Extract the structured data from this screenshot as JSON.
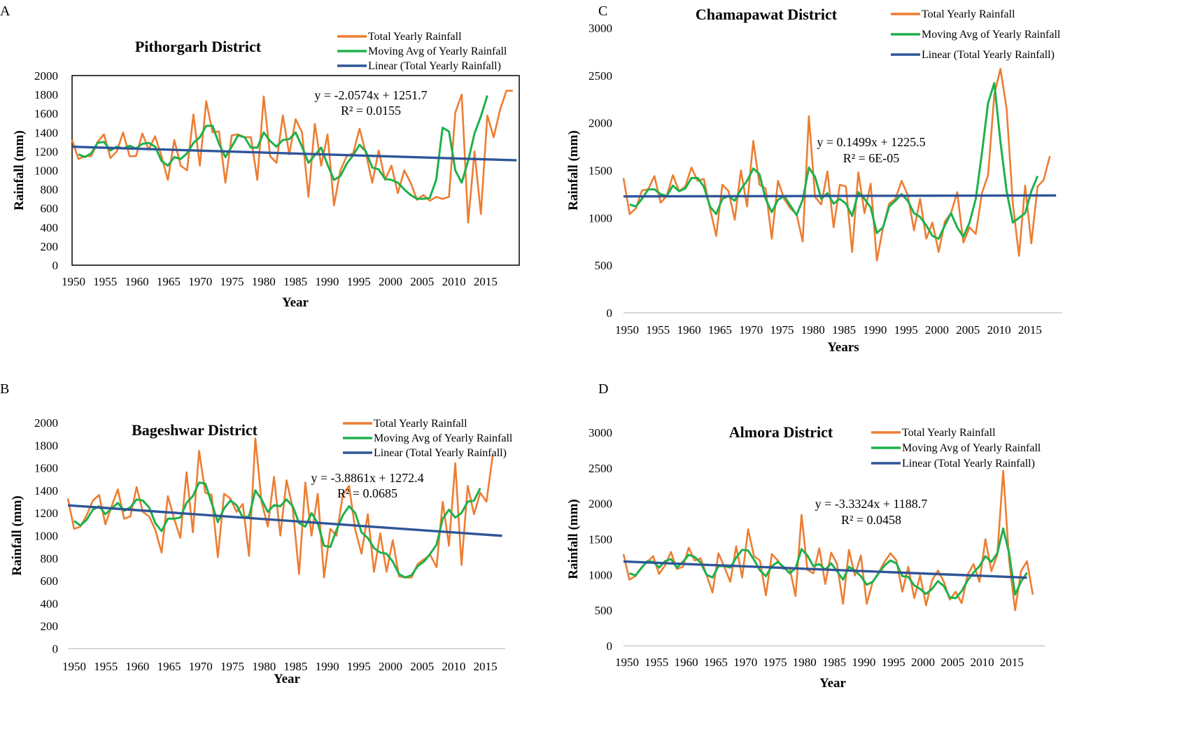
{
  "colors": {
    "total": "#ED7D31",
    "moving": "#1DB14B",
    "linear": "#2F5597"
  },
  "chart_data": [
    {
      "type": "line",
      "panel_label": "A",
      "title": "Pithorgarh District",
      "xlabel": "Year",
      "ylabel": "Rainfall (mm)",
      "ylim": [
        0,
        2000
      ],
      "yticks": [
        "0",
        "200",
        "400",
        "600",
        "800",
        "1000",
        "1200",
        "1400",
        "1600",
        "1800",
        "2000"
      ],
      "xticks": [
        "1950",
        "1955",
        "1960",
        "1965",
        "1970",
        "1975",
        "1980",
        "1985",
        "1990",
        "1995",
        "2000",
        "2005",
        "2010",
        "2015"
      ],
      "x_start": 1950,
      "legend": [
        "Total Yearly Rainfall",
        "Moving Avg of Yearly Rainfall",
        "Linear (Total Yearly Rainfall)"
      ],
      "equation": "y = -2.0574x + 1251.7",
      "r2": "R² = 0.0155",
      "trend": {
        "slope": -2.0574,
        "intercept": 1251.7
      },
      "series": [
        {
          "name": "Total Yearly Rainfall",
          "values": [
            1320,
            1120,
            1150,
            1150,
            1300,
            1380,
            1130,
            1200,
            1400,
            1150,
            1150,
            1390,
            1220,
            1360,
            1150,
            900,
            1320,
            1050,
            1000,
            1590,
            1050,
            1730,
            1400,
            1410,
            870,
            1370,
            1380,
            1350,
            1350,
            900,
            1780,
            1150,
            1080,
            1580,
            1170,
            1540,
            1400,
            720,
            1490,
            1050,
            1380,
            630,
            1000,
            1150,
            1180,
            1440,
            1180,
            870,
            1210,
            900,
            1050,
            760,
            1000,
            870,
            690,
            740,
            680,
            720,
            700,
            720,
            1610,
            1800,
            450,
            1200,
            540,
            1580,
            1350,
            1640,
            1840,
            1840
          ]
        },
        {
          "name": "Moving Avg of Yearly Rainfall",
          "values": [
            null,
            1170,
            1140,
            1180,
            1290,
            1300,
            1210,
            1250,
            1230,
            1260,
            1230,
            1280,
            1290,
            1250,
            1100,
            1050,
            1140,
            1120,
            1180,
            1290,
            1350,
            1470,
            1470,
            1280,
            1140,
            1250,
            1370,
            1350,
            1240,
            1240,
            1400,
            1310,
            1250,
            1320,
            1330,
            1400,
            1250,
            1080,
            1160,
            1240,
            1060,
            900,
            940,
            1070,
            1160,
            1270,
            1200,
            1030,
            1010,
            910,
            900,
            870,
            800,
            740,
            700,
            700,
            710,
            900,
            1450,
            1410,
            1000,
            870,
            1100,
            1390,
            1570,
            1790,
            null,
            null,
            null,
            null
          ]
        }
      ]
    },
    {
      "type": "line",
      "panel_label": "B",
      "title": "Bageshwar District",
      "xlabel": "Year",
      "ylabel": "Rainfall (mm)",
      "ylim": [
        0,
        2000
      ],
      "yticks": [
        "0",
        "200",
        "400",
        "600",
        "800",
        "1000",
        "1200",
        "1400",
        "1600",
        "1800",
        "2000"
      ],
      "xticks": [
        "1950",
        "1955",
        "1960",
        "1965",
        "1970",
        "1975",
        "1980",
        "1985",
        "1990",
        "1995",
        "2000",
        "2005",
        "2010",
        "2015"
      ],
      "x_start": 1950,
      "legend": [
        "Total Yearly Rainfall",
        "Moving Avg of Yearly Rainfall",
        "Linear (Total Yearly Rainfall)"
      ],
      "equation": "y = -3.8861x + 1272.4",
      "r2": "R² = 0.0685",
      "trend": {
        "slope": -3.8861,
        "intercept": 1272.4
      },
      "series": [
        {
          "name": "Total Yearly Rainfall",
          "values": [
            1330,
            1060,
            1080,
            1180,
            1310,
            1360,
            1100,
            1260,
            1410,
            1150,
            1170,
            1430,
            1210,
            1170,
            1050,
            850,
            1350,
            1150,
            980,
            1560,
            1030,
            1750,
            1380,
            1360,
            810,
            1370,
            1330,
            1210,
            1280,
            820,
            1860,
            1300,
            1080,
            1520,
            1000,
            1490,
            1240,
            660,
            1470,
            1000,
            1370,
            630,
            1060,
            1000,
            1360,
            1440,
            1050,
            840,
            1190,
            680,
            1020,
            680,
            960,
            640,
            630,
            630,
            750,
            790,
            830,
            720,
            1300,
            910,
            1640,
            740,
            1440,
            1190,
            1380,
            1300,
            1710
          ]
        },
        {
          "name": "Moving Avg of Yearly Rainfall",
          "values": [
            null,
            1130,
            1090,
            1140,
            1230,
            1260,
            1190,
            1240,
            1290,
            1220,
            1250,
            1320,
            1310,
            1250,
            1110,
            1040,
            1150,
            1150,
            1160,
            1290,
            1350,
            1470,
            1460,
            1290,
            1120,
            1240,
            1310,
            1270,
            1160,
            1170,
            1400,
            1320,
            1210,
            1270,
            1260,
            1320,
            1260,
            1110,
            1080,
            1200,
            1110,
            910,
            900,
            1050,
            1180,
            1260,
            1200,
            1030,
            980,
            890,
            850,
            840,
            770,
            660,
            630,
            650,
            730,
            770,
            840,
            920,
            1150,
            1230,
            1160,
            1200,
            1300,
            1310,
            1420,
            null,
            null
          ]
        }
      ]
    },
    {
      "type": "line",
      "panel_label": "C",
      "title": "Chamapawat District",
      "xlabel": "Years",
      "ylabel": "Rainfall (mm)",
      "ylim": [
        0,
        3000
      ],
      "yticks": [
        "0",
        "500",
        "1000",
        "1500",
        "2000",
        "2500",
        "3000"
      ],
      "xticks": [
        "1950",
        "1955",
        "1960",
        "1965",
        "1970",
        "1975",
        "1980",
        "1985",
        "1990",
        "1995",
        "2000",
        "2005",
        "2010",
        "2015"
      ],
      "x_start": 1950,
      "legend": [
        "Total Yearly Rainfall",
        "Moving Avg of Yearly Rainfall",
        "Linear (Total Yearly Rainfall)"
      ],
      "equation": "y = 0.1499x + 1225.5",
      "r2": "R² = 6E-05",
      "trend": {
        "slope": 0.1499,
        "intercept": 1225.5
      },
      "series": [
        {
          "name": "Total Yearly Rainfall",
          "values": [
            1420,
            1040,
            1100,
            1290,
            1300,
            1440,
            1160,
            1230,
            1450,
            1280,
            1330,
            1530,
            1390,
            1410,
            1100,
            810,
            1350,
            1280,
            980,
            1500,
            1120,
            1810,
            1350,
            1310,
            780,
            1390,
            1200,
            1100,
            1040,
            750,
            2070,
            1220,
            1140,
            1490,
            900,
            1350,
            1330,
            640,
            1480,
            1050,
            1360,
            550,
            900,
            1150,
            1200,
            1390,
            1240,
            870,
            1200,
            780,
            950,
            640,
            960,
            1050,
            1270,
            740,
            900,
            830,
            1260,
            1450,
            2300,
            2570,
            2150,
            1150,
            600,
            1340,
            730,
            1330,
            1400,
            1650
          ]
        },
        {
          "name": "Moving Avg of Yearly Rainfall",
          "values": [
            null,
            1140,
            1120,
            1200,
            1300,
            1300,
            1250,
            1230,
            1340,
            1280,
            1310,
            1420,
            1420,
            1330,
            1120,
            1040,
            1200,
            1230,
            1180,
            1300,
            1390,
            1520,
            1460,
            1200,
            1060,
            1190,
            1230,
            1130,
            1030,
            1190,
            1530,
            1430,
            1200,
            1260,
            1150,
            1200,
            1150,
            1020,
            1270,
            1200,
            1110,
            840,
            900,
            1120,
            1180,
            1250,
            1180,
            1050,
            1010,
            920,
            810,
            780,
            920,
            1050,
            900,
            800,
            950,
            1200,
            1680,
            2210,
            2420,
            1800,
            1280,
            950,
            1000,
            1050,
            1280,
            1440,
            null,
            null
          ]
        }
      ]
    },
    {
      "type": "line",
      "panel_label": "D",
      "title": "Almora District",
      "xlabel": "Year",
      "ylabel": "Rainfall (mm)",
      "ylim": [
        0,
        3000
      ],
      "yticks": [
        "0",
        "500",
        "1000",
        "1500",
        "2000",
        "2500",
        "3000"
      ],
      "xticks": [
        "1950",
        "1955",
        "1960",
        "1965",
        "1970",
        "1975",
        "1980",
        "1985",
        "1990",
        "1995",
        "2000",
        "2005",
        "2010",
        "2015"
      ],
      "x_start": 1950,
      "legend": [
        "Total Yearly Rainfall",
        "Moving Avg of Yearly Rainfall",
        "Linear (Total Yearly Rainfall)"
      ],
      "equation": "y = -3.3324x + 1188.7",
      "r2": "R² = 0.0458",
      "trend": {
        "slope": -3.3324,
        "intercept": 1188.7
      },
      "series": [
        {
          "name": "Total Yearly Rainfall",
          "values": [
            1290,
            930,
            980,
            1100,
            1180,
            1260,
            1010,
            1130,
            1320,
            1080,
            1110,
            1380,
            1200,
            1230,
            1000,
            750,
            1300,
            1110,
            900,
            1400,
            960,
            1640,
            1260,
            1200,
            710,
            1290,
            1200,
            1080,
            1100,
            700,
            1840,
            1070,
            1020,
            1370,
            870,
            1310,
            1150,
            590,
            1350,
            990,
            1270,
            590,
            900,
            1030,
            1180,
            1300,
            1200,
            760,
            1110,
            670,
            990,
            570,
            920,
            1060,
            900,
            650,
            760,
            600,
            1000,
            1150,
            900,
            1500,
            1050,
            1280,
            2460,
            1200,
            500,
            1050,
            1190,
            720
          ]
        },
        {
          "name": "Moving Avg of Yearly Rainfall",
          "values": [
            null,
            1020,
            990,
            1090,
            1190,
            1180,
            1100,
            1190,
            1220,
            1100,
            1180,
            1280,
            1250,
            1170,
            1000,
            960,
            1120,
            1120,
            1100,
            1240,
            1350,
            1340,
            1210,
            1060,
            980,
            1120,
            1180,
            1110,
            1020,
            1090,
            1360,
            1270,
            1120,
            1150,
            1070,
            1160,
            1050,
            930,
            1110,
            1060,
            980,
            860,
            900,
            1020,
            1130,
            1200,
            1160,
            980,
            970,
            850,
            800,
            730,
            800,
            910,
            840,
            680,
            670,
            770,
            920,
            1030,
            1120,
            1260,
            1180,
            1300,
            1650,
            1300,
            720,
            900,
            1030,
            null
          ]
        }
      ]
    }
  ]
}
